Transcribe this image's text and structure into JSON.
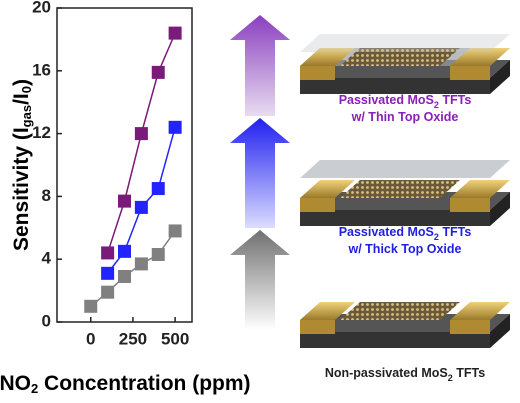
{
  "chart_data": {
    "type": "line",
    "y_label": {
      "text": "Sensitivity (I",
      "sub": "gas",
      "mid": "/I",
      "sub2": "0",
      "end": ")"
    },
    "x_label": {
      "text": "NO",
      "sub": "2",
      "end": " Concentration (ppm)"
    },
    "xlim": [
      -200,
      600
    ],
    "xticks": [
      0,
      250,
      500
    ],
    "ylim": [
      0,
      20
    ],
    "yticks": [
      0,
      4,
      8,
      12,
      16,
      20
    ],
    "series": [
      {
        "color": "#808080",
        "x": [
          0,
          100,
          200,
          300,
          400,
          500
        ],
        "values": [
          1,
          1.9,
          2.9,
          3.7,
          4.3,
          5.8
        ]
      },
      {
        "color": "#2323ff",
        "x": [
          100,
          200,
          300,
          400,
          500
        ],
        "values": [
          3.1,
          4.5,
          7.3,
          8.5,
          12.4
        ]
      },
      {
        "color": "#7a1a7a",
        "x": [
          100,
          200,
          300,
          400,
          500
        ],
        "values": [
          4.4,
          7.7,
          12,
          15.9,
          18.4
        ]
      }
    ]
  },
  "devices": [
    {
      "line1": {
        "text": "Passivated MoS",
        "sub": "2",
        "end": " TFTs"
      },
      "line2": "w/ Thin Top Oxide",
      "color": "#8a1fb5"
    },
    {
      "line1": {
        "text": "Passivated MoS",
        "sub": "2",
        "end": " TFTs"
      },
      "line2": "w/ Thick Top Oxide",
      "color": "#1f1fe0"
    },
    {
      "line1": {
        "text": "Non-passivated MoS",
        "sub": "2",
        "end": " TFTs"
      },
      "color": "#222222"
    }
  ]
}
